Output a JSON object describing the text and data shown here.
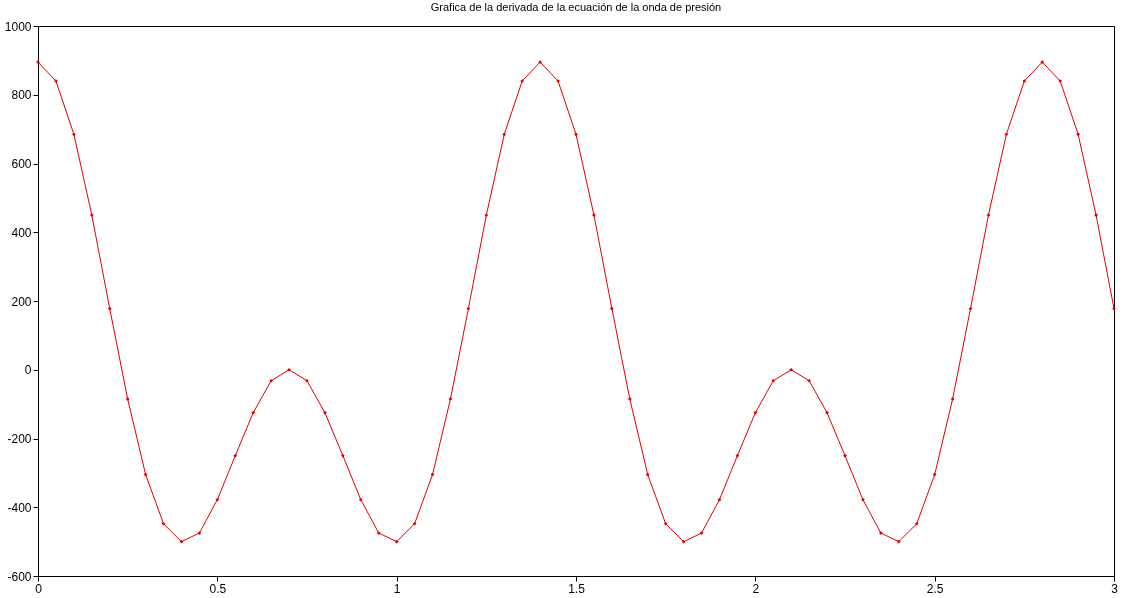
{
  "chart_data": {
    "type": "line",
    "title": "Grafica de la derivada de la ecuación de la onda de presión",
    "x": [
      0,
      0.05,
      0.1,
      0.15,
      0.2,
      0.25,
      0.3,
      0.35,
      0.4,
      0.45,
      0.5,
      0.55,
      0.6,
      0.65,
      0.7,
      0.75,
      0.8,
      0.85,
      0.9,
      0.95,
      1,
      1.05,
      1.1,
      1.15,
      1.2,
      1.25,
      1.3,
      1.35,
      1.4,
      1.45,
      1.5,
      1.55,
      1.6,
      1.65,
      1.7,
      1.75,
      1.8,
      1.85,
      1.9,
      1.95,
      2,
      2.05,
      2.1,
      2.15,
      2.2,
      2.25,
      2.3,
      2.35,
      2.4,
      2.45,
      2.5,
      2.55,
      2.6,
      2.65,
      2.7,
      2.75,
      2.8,
      2.85,
      2.9,
      2.95,
      3
    ],
    "series": [
      {
        "color": "#e00000",
        "values": [
          895,
          840,
          685,
          450,
          178,
          -85,
          -305,
          -448,
          -500,
          -475,
          -378,
          -250,
          -125,
          -32,
          0,
          -32,
          -125,
          -250,
          -378,
          -475,
          -500,
          -448,
          -305,
          -85,
          178,
          450,
          685,
          840,
          895,
          840,
          685,
          450,
          178,
          -85,
          -305,
          -448,
          -500,
          -475,
          -378,
          -250,
          -125,
          -32,
          0,
          -32,
          -125,
          -250,
          -378,
          -475,
          -500,
          -448,
          -305,
          -85,
          178,
          450,
          685,
          840,
          895,
          840,
          685,
          450,
          178
        ]
      }
    ],
    "xlim": [
      0,
      3
    ],
    "xticks": [
      0,
      0.5,
      1,
      1.5,
      2,
      2.5,
      3
    ],
    "ylim": [
      -600,
      1000
    ],
    "yticks": [
      -600,
      -400,
      -200,
      0,
      200,
      400,
      600,
      800,
      1000
    ],
    "grid": false,
    "legend": false,
    "marker": "diamond",
    "line_style": "solid"
  }
}
